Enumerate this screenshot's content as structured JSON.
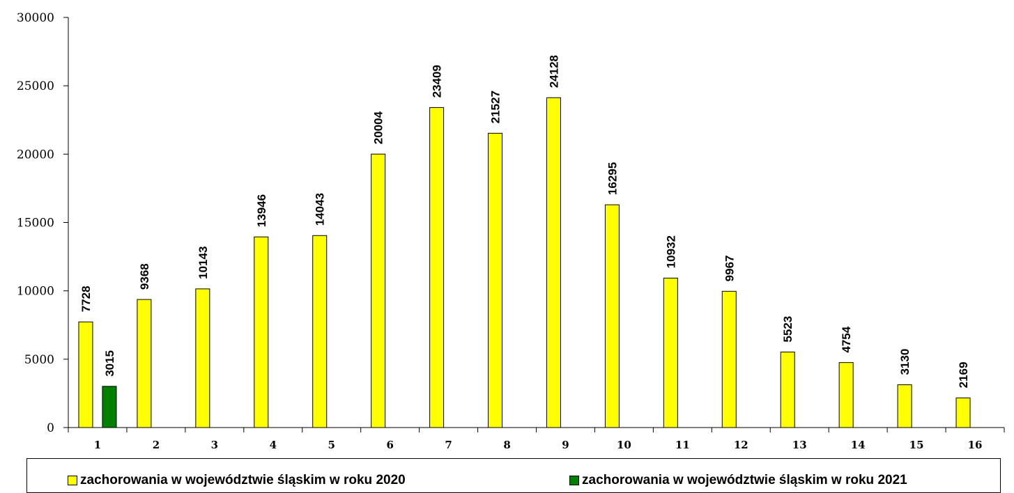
{
  "chart_data": {
    "type": "bar",
    "categories": [
      "1",
      "2",
      "3",
      "4",
      "5",
      "6",
      "7",
      "8",
      "9",
      "10",
      "11",
      "12",
      "13",
      "14",
      "15",
      "16"
    ],
    "series": [
      {
        "name": "zachorowania w województwie śląskim w roku 2020",
        "color": "#ffff00",
        "values": [
          7728,
          9368,
          10143,
          13946,
          14043,
          20004,
          23409,
          21527,
          24128,
          16295,
          10932,
          9967,
          5523,
          4754,
          3130,
          2169
        ]
      },
      {
        "name": "zachorowania w województwie śląskim w roku 2021",
        "color": "#008000",
        "values": [
          3015,
          null,
          null,
          null,
          null,
          null,
          null,
          null,
          null,
          null,
          null,
          null,
          null,
          null,
          null,
          null
        ]
      }
    ],
    "yticks": [
      "0",
      "5000",
      "10000",
      "15000",
      "20000",
      "25000",
      "30000"
    ],
    "ylim": [
      0,
      30000
    ],
    "grid": false,
    "legend_position": "bottom",
    "title": "",
    "xlabel": "",
    "ylabel": ""
  }
}
